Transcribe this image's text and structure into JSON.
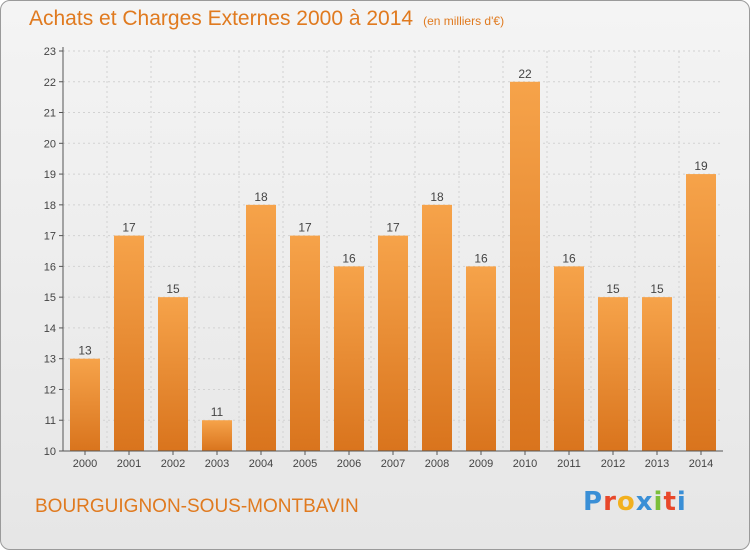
{
  "title": "Achats et Charges Externes 2000 à 2014",
  "subtitle": "(en milliers d'€)",
  "commune": "BOURGUIGNON-SOUS-MONTBAVIN",
  "logo": {
    "letters": [
      "P",
      "r",
      "o",
      "x",
      "i",
      "t",
      "i"
    ],
    "colors": [
      "#3a8fd6",
      "#e8482a",
      "#f2b01e",
      "#3a8fd6",
      "#7bbf3a",
      "#e8482a",
      "#3a8fd6"
    ]
  },
  "colors": {
    "bar_light": "#f6a34a",
    "bar_dark": "#d9741d",
    "title": "#e07a1f"
  },
  "chart_data": {
    "type": "bar",
    "categories": [
      "2000",
      "2001",
      "2002",
      "2003",
      "2004",
      "2005",
      "2006",
      "2007",
      "2008",
      "2009",
      "2010",
      "2011",
      "2012",
      "2013",
      "2014"
    ],
    "values": [
      13,
      17,
      15,
      11,
      18,
      17,
      16,
      17,
      18,
      16,
      22,
      16,
      15,
      15,
      19
    ],
    "ylim": [
      10,
      23
    ],
    "yticks": [
      "10",
      "11",
      "12",
      "13",
      "14",
      "15",
      "16",
      "17",
      "18",
      "19",
      "20",
      "21",
      "22",
      "23"
    ],
    "grid": true,
    "legend": false
  }
}
